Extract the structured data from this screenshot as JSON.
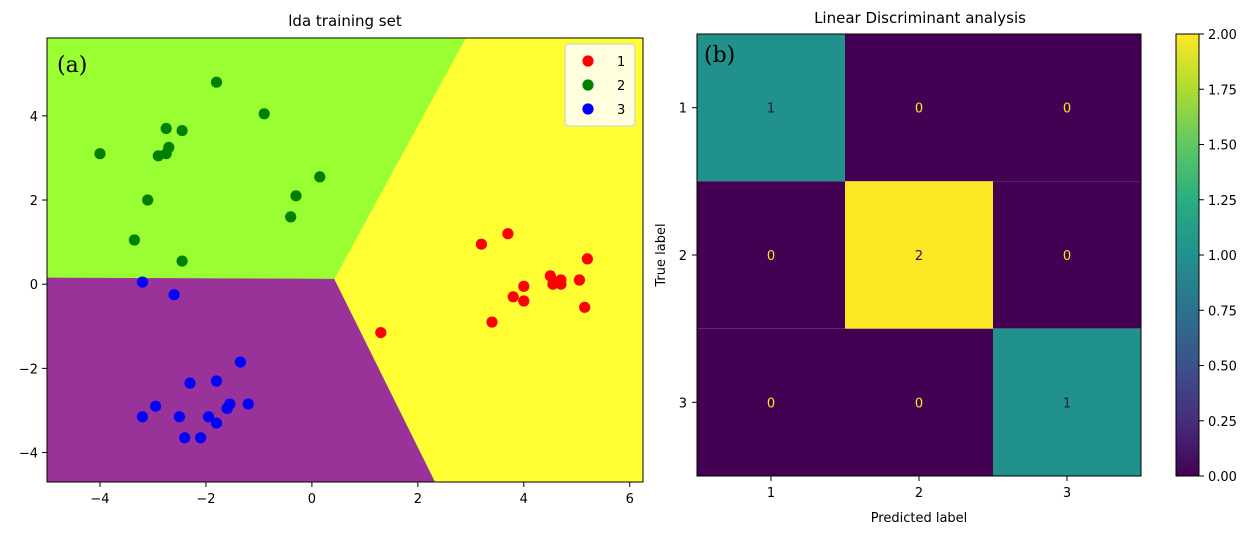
{
  "chart_data": [
    {
      "type": "scatter",
      "panel_label": "(a)",
      "title": "lda training set",
      "xlabel": "",
      "ylabel": "",
      "xlim": [
        -5,
        6.25
      ],
      "ylim": [
        -4.7,
        5.85
      ],
      "x_ticks": [
        -4,
        -2,
        0,
        2,
        4,
        6
      ],
      "y_ticks": [
        -4,
        -2,
        0,
        2,
        4
      ],
      "legend": {
        "placement": "top-right",
        "entries": [
          "1",
          "2",
          "3"
        ]
      },
      "decision_regions": [
        {
          "class": "1",
          "color": "#ffff33",
          "polygon": [
            [
              2.9,
              5.85
            ],
            [
              6.25,
              5.85
            ],
            [
              6.25,
              -4.7
            ],
            [
              2.32,
              -4.7
            ],
            [
              0.42,
              0.12
            ]
          ]
        },
        {
          "class": "2",
          "color": "#99ff33",
          "polygon": [
            [
              -5,
              5.85
            ],
            [
              2.9,
              5.85
            ],
            [
              0.42,
              0.12
            ],
            [
              -5,
              0.15
            ]
          ]
        },
        {
          "class": "3",
          "color": "#993399",
          "polygon": [
            [
              -5,
              0.15
            ],
            [
              0.42,
              0.12
            ],
            [
              2.32,
              -4.7
            ],
            [
              -5,
              -4.7
            ]
          ]
        }
      ],
      "series": [
        {
          "name": "1",
          "color": "#ff0000",
          "points": [
            [
              1.3,
              -1.15
            ],
            [
              3.2,
              0.95
            ],
            [
              3.4,
              -0.9
            ],
            [
              3.7,
              1.2
            ],
            [
              3.8,
              -0.3
            ],
            [
              4.0,
              -0.05
            ],
            [
              4.0,
              -0.4
            ],
            [
              4.5,
              0.2
            ],
            [
              4.55,
              0.0
            ],
            [
              4.6,
              0.05
            ],
            [
              4.7,
              0.0
            ],
            [
              4.7,
              0.1
            ],
            [
              5.05,
              0.1
            ],
            [
              5.15,
              -0.55
            ],
            [
              5.2,
              0.6
            ]
          ]
        },
        {
          "name": "2",
          "color": "#008000",
          "points": [
            [
              -4.0,
              3.1
            ],
            [
              -3.35,
              1.05
            ],
            [
              -3.1,
              2.0
            ],
            [
              -2.9,
              3.05
            ],
            [
              -2.75,
              3.7
            ],
            [
              -2.75,
              3.1
            ],
            [
              -2.7,
              3.25
            ],
            [
              -2.45,
              3.65
            ],
            [
              -2.45,
              0.55
            ],
            [
              -1.8,
              4.8
            ],
            [
              -0.9,
              4.05
            ],
            [
              -0.4,
              1.6
            ],
            [
              -0.3,
              2.1
            ],
            [
              0.15,
              2.55
            ]
          ]
        },
        {
          "name": "3",
          "color": "#0000ff",
          "points": [
            [
              -3.2,
              0.05
            ],
            [
              -3.2,
              -3.15
            ],
            [
              -2.95,
              -2.9
            ],
            [
              -2.6,
              -0.25
            ],
            [
              -2.5,
              -3.15
            ],
            [
              -2.4,
              -3.65
            ],
            [
              -2.3,
              -2.35
            ],
            [
              -2.1,
              -3.65
            ],
            [
              -1.95,
              -3.15
            ],
            [
              -1.8,
              -2.3
            ],
            [
              -1.8,
              -3.3
            ],
            [
              -1.6,
              -2.95
            ],
            [
              -1.55,
              -2.85
            ],
            [
              -1.35,
              -1.85
            ],
            [
              -1.2,
              -2.85
            ]
          ]
        }
      ]
    },
    {
      "type": "heatmap",
      "panel_label": "(b)",
      "title": "Linear Discriminant analysis",
      "xlabel": "Predicted label",
      "ylabel": "True label",
      "x_categories": [
        "1",
        "2",
        "3"
      ],
      "y_categories": [
        "1",
        "2",
        "3"
      ],
      "matrix": [
        [
          1,
          0,
          0
        ],
        [
          0,
          2,
          0
        ],
        [
          0,
          0,
          1
        ]
      ],
      "colorbar": {
        "colormap": "viridis",
        "range": [
          0,
          2
        ],
        "ticks": [
          "0.00",
          "0.25",
          "0.50",
          "0.75",
          "1.00",
          "1.25",
          "1.50",
          "1.75",
          "2.00"
        ]
      },
      "colors": {
        "low": "#440154",
        "mid": "#21918c",
        "high": "#fde725"
      }
    }
  ]
}
